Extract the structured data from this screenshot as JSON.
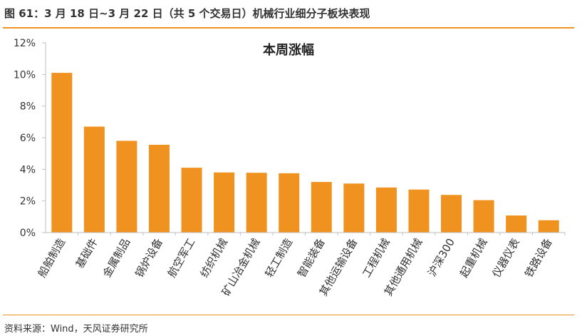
{
  "figure": {
    "title": "图 61：3 月 18 日~3 月 22 日（共 5 个交易日）机械行业细分子板块表现",
    "source": "资料来源：Wind，天风证券研究所"
  },
  "colors": {
    "bar": "#F0921F",
    "rule": "#F0921F",
    "axis": "#BFBFBF",
    "text": "#333333"
  },
  "chart_data": {
    "type": "bar",
    "title": "本周涨幅",
    "categories": [
      "船舶制造",
      "基础件",
      "金属制品",
      "锅炉设备",
      "航空军工",
      "纺织机械",
      "矿山冶金机械",
      "轻工制造",
      "智能装备",
      "其他运输设备",
      "工程机械",
      "其他通用机械",
      "沪深300",
      "起重机械",
      "仪器仪表",
      "铁路设备"
    ],
    "values": [
      10.1,
      6.7,
      5.8,
      5.55,
      4.1,
      3.8,
      3.78,
      3.75,
      3.2,
      3.1,
      2.85,
      2.72,
      2.38,
      2.05,
      1.08,
      0.78
    ],
    "y_ticks": [
      "0%",
      "2%",
      "4%",
      "6%",
      "8%",
      "10%",
      "12%"
    ],
    "ylim": [
      0,
      12
    ],
    "grid": false,
    "legend": "none"
  }
}
